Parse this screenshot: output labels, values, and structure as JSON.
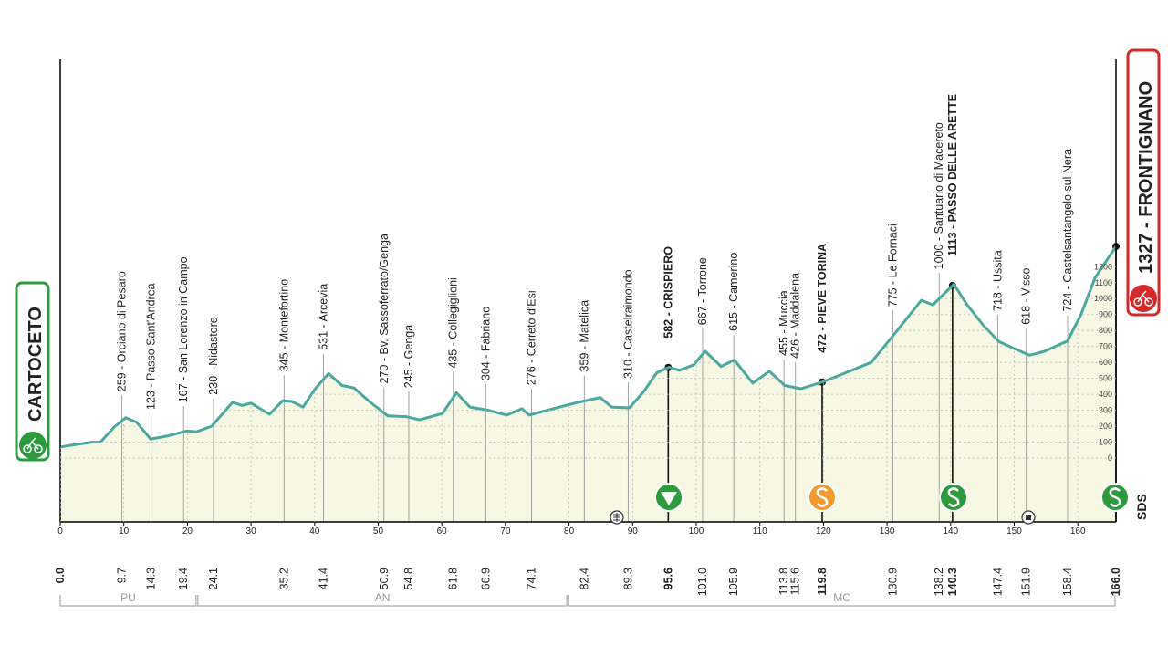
{
  "chart_data": {
    "type": "area",
    "color": "#4aa8a0",
    "fill": "#f7f8e4",
    "xlim": [
      0,
      166
    ],
    "ylim": [
      -400,
      2500
    ],
    "xticks": [
      0,
      10,
      20,
      30,
      40,
      50,
      60,
      70,
      80,
      90,
      100,
      110,
      120,
      130,
      140,
      150,
      160
    ],
    "yticks": [
      0,
      100,
      200,
      300,
      400,
      500,
      600,
      700,
      800,
      900,
      1000,
      1100,
      1200
    ],
    "grid": true,
    "x": [
      0,
      4.9,
      6.3,
      8.5,
      10.3,
      12,
      14.2,
      17,
      19.9,
      21.4,
      23.8,
      27.1,
      28.6,
      30,
      32.9,
      35,
      36.4,
      38.2,
      40,
      42.2,
      44.3,
      46.2,
      48.6,
      51.5,
      54.4,
      56.5,
      60.1,
      62.3,
      64.4,
      67.3,
      70.2,
      72.6,
      73.7,
      76.6,
      80.9,
      84.9,
      86.7,
      89.5,
      91.7,
      93.8,
      95.7,
      97.4,
      99.6,
      101.4,
      103.9,
      106,
      108.9,
      111.5,
      113.9,
      116.5,
      119.7,
      123.2,
      127.5,
      131.1,
      135.4,
      137.2,
      140.5,
      142.6,
      145.2,
      147.6,
      149.8,
      152.4,
      154.8,
      158.4,
      160.5,
      162.7,
      166
    ],
    "values": [
      70,
      100,
      100,
      195,
      253,
      225,
      120,
      140,
      170,
      165,
      200,
      350,
      330,
      345,
      275,
      360,
      355,
      320,
      430,
      530,
      455,
      440,
      355,
      265,
      260,
      240,
      280,
      410,
      320,
      300,
      270,
      310,
      270,
      300,
      345,
      380,
      320,
      315,
      415,
      535,
      570,
      550,
      585,
      670,
      575,
      615,
      470,
      545,
      455,
      435,
      475,
      530,
      600,
      775,
      990,
      960,
      1090,
      960,
      830,
      730,
      690,
      645,
      670,
      735,
      900,
      1130,
      1327
    ],
    "start": {
      "km": {
        "value": 0,
        "label": "0.0"
      },
      "name": "CARTOCETO"
    },
    "finish": {
      "km": {
        "value": 166,
        "label": "166.0"
      },
      "name": "1327 - FRONTIGNANO"
    },
    "waypoints": [
      {
        "km": 9.7,
        "name": "259 - Orciano di Pesaro"
      },
      {
        "km": 14.3,
        "name": "123 - Passo Sant'Andrea"
      },
      {
        "km": 19.4,
        "name": "167 - San Lorenzo in Campo"
      },
      {
        "km": 24.1,
        "name": "230 - Nidastore"
      },
      {
        "km": 35.2,
        "name": "345 - Montefortino"
      },
      {
        "km": 41.4,
        "name": "531 - Arcevia"
      },
      {
        "km": 50.9,
        "name": "270 - Bv. Sassoferrato/Genga"
      },
      {
        "km": 54.8,
        "name": "245 - Genga"
      },
      {
        "km": 61.8,
        "name": "435 - Collegiglioni"
      },
      {
        "km": 66.9,
        "name": "304 - Fabriano"
      },
      {
        "km": 74.1,
        "name": "276 - Cerreto d'Esi"
      },
      {
        "km": 82.4,
        "name": "359 - Matelica"
      },
      {
        "km": 89.3,
        "name": "310 - Castelraimondo"
      },
      {
        "km": 95.6,
        "name": "582 - CRISPIERO",
        "bold": true
      },
      {
        "km": {
          "value": 101,
          "label": "101.0"
        },
        "name": "667 - Torrone"
      },
      {
        "km": 105.9,
        "name": "615 - Camerino"
      },
      {
        "km": 113.8,
        "name": "455 - Muccia"
      },
      {
        "km": 115.6,
        "name": "426 - Maddalena"
      },
      {
        "km": 119.8,
        "name": "472 - PIEVE TORINA",
        "bold": true
      },
      {
        "km": 130.9,
        "name": "775 - Le Fornaci"
      },
      {
        "km": 138.2,
        "name": "1000 - Santuario di Macereto"
      },
      {
        "km": 140.3,
        "name": "1113 - PASSO DELLE ARETTE",
        "bold": true
      },
      {
        "km": 147.4,
        "name": "718 - Ussita"
      },
      {
        "km": 151.9,
        "name": "618 - Visso"
      },
      {
        "km": 158.4,
        "name": "724 - Castelsantangelo sul Nera"
      }
    ],
    "regions": [
      {
        "name": "PU",
        "from": 0,
        "to": 21.5
      },
      {
        "name": "AN",
        "from": 21.5,
        "to": 79.8
      },
      {
        "name": "MC",
        "from": 79.8,
        "to": 166
      }
    ],
    "logo": "SDS"
  }
}
